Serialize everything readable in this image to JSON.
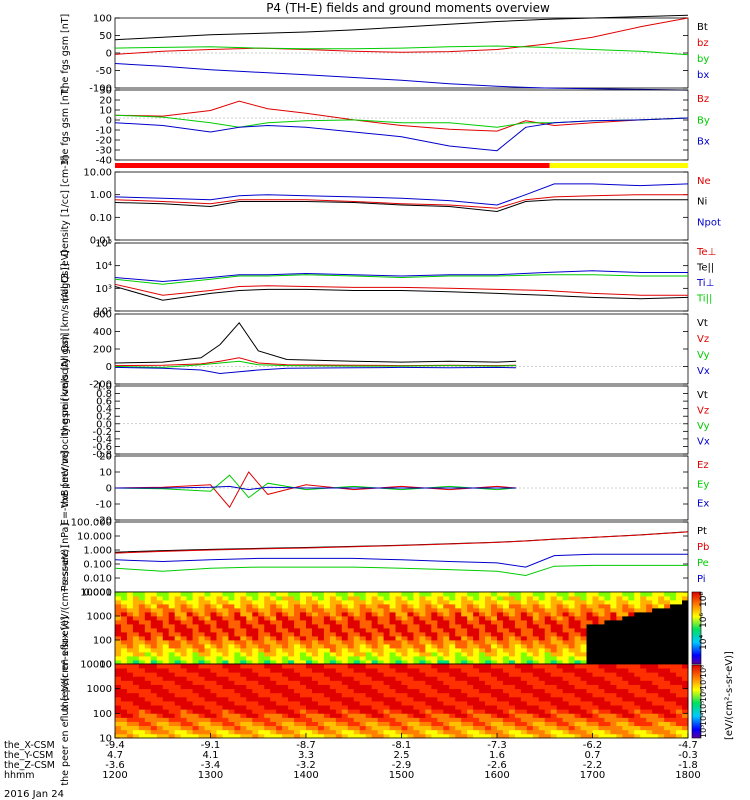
{
  "title": "P4 (TH-E) fields and ground moments overview",
  "date": "2016 Jan 24",
  "orbit_rows": [
    {
      "label": "the_X-CSM",
      "values": [
        "-9.4",
        "-9.1",
        "-8.7",
        "-8.1",
        "-7.3",
        "-6.2",
        "-4.7"
      ]
    },
    {
      "label": "the_Y-CSM",
      "values": [
        "4.7",
        "4.1",
        "3.3",
        "2.5",
        "1.6",
        "0.7",
        "-0.3"
      ]
    },
    {
      "label": "the_Z-CSM",
      "values": [
        "-3.6",
        "-3.4",
        "-3.2",
        "-2.9",
        "-2.6",
        "-2.2",
        "-1.8"
      ]
    },
    {
      "label": "hhmm",
      "values": [
        "1200",
        "1300",
        "1400",
        "1500",
        "1600",
        "1700",
        "1800"
      ]
    }
  ],
  "colorbar": {
    "label": "[eV/(cm²-s-sr-eV)]",
    "ticks_upper": [
      "10⁸",
      "10⁶",
      "10⁴"
    ],
    "ticks_lower": [
      "10⁸",
      "10⁷",
      "10⁶",
      "10⁵",
      "10⁴",
      "10³"
    ]
  },
  "colors": {
    "black": "#000000",
    "red": "#e00000",
    "green": "#00cc00",
    "blue": "#0000cc",
    "yellow": "#ffff00",
    "brightred": "#ff0000"
  },
  "chart_data": [
    {
      "type": "line",
      "ylabel": "the fgs gsm [nT]",
      "ylim": [
        -100,
        100
      ],
      "yticks": [
        "-100",
        "-50",
        "0",
        "50",
        "100"
      ],
      "legend": [
        "Bt",
        "bz",
        "by",
        "bx"
      ],
      "x": [
        12.0,
        12.5,
        13.0,
        13.5,
        14.0,
        14.5,
        15.0,
        15.5,
        16.0,
        16.5,
        17.0,
        17.5,
        18.0
      ],
      "series": [
        {
          "name": "Bt",
          "color": "#000000",
          "values": [
            38,
            45,
            52,
            56,
            60,
            66,
            74,
            82,
            90,
            96,
            100,
            104,
            108
          ]
        },
        {
          "name": "bz",
          "color": "#e00000",
          "values": [
            -4,
            5,
            10,
            14,
            10,
            5,
            2,
            4,
            10,
            25,
            45,
            75,
            100
          ]
        },
        {
          "name": "by",
          "color": "#00cc00",
          "values": [
            14,
            16,
            18,
            14,
            12,
            12,
            14,
            18,
            20,
            16,
            10,
            5,
            -5
          ]
        },
        {
          "name": "bx",
          "color": "#0000cc",
          "values": [
            -30,
            -38,
            -48,
            -55,
            -62,
            -70,
            -78,
            -88,
            -95,
            -100,
            -102,
            -104,
            -106
          ]
        }
      ]
    },
    {
      "type": "line",
      "ylabel": "the fgs gsm [nT]",
      "ylim": [
        -45,
        30
      ],
      "yticks": [
        "-40",
        "-30",
        "-20",
        "-10",
        "0",
        "10",
        "20",
        "30"
      ],
      "legend": [
        "Bz",
        "By",
        "Bx"
      ],
      "x": [
        12.0,
        12.5,
        13.0,
        13.3,
        13.6,
        14.0,
        14.5,
        15.0,
        15.5,
        16.0,
        16.3,
        16.6,
        17.0,
        17.5,
        18.0
      ],
      "series": [
        {
          "name": "Bz",
          "color": "#e00000",
          "values": [
            3,
            2,
            8,
            18,
            10,
            5,
            -2,
            -8,
            -12,
            -14,
            -3,
            -8,
            -5,
            -2,
            0
          ]
        },
        {
          "name": "By",
          "color": "#00cc00",
          "values": [
            3,
            1,
            -5,
            -10,
            -5,
            -3,
            -2,
            -5,
            -5,
            -10,
            -5,
            -5,
            -3,
            -2,
            0
          ]
        },
        {
          "name": "Bx",
          "color": "#0000cc",
          "values": [
            -5,
            -8,
            -15,
            -10,
            -8,
            -10,
            -15,
            -20,
            -30,
            -35,
            -10,
            -5,
            -3,
            -2,
            0
          ]
        }
      ],
      "mode_bar": [
        {
          "from": 12.0,
          "to": 16.55,
          "color": "#ff0000"
        },
        {
          "from": 16.55,
          "to": 18.0,
          "color": "#ffff00"
        }
      ]
    },
    {
      "type": "line",
      "log": true,
      "ylabel": "Density [1/cc] [cm-3]",
      "ylim": [
        0.01,
        10
      ],
      "yticks": [
        "0.01",
        "0.10",
        "1.00",
        "10.00"
      ],
      "legend": [
        "Ne",
        "Ni",
        "Npot"
      ],
      "x": [
        12.0,
        12.5,
        13.0,
        13.3,
        13.6,
        14.0,
        14.5,
        15.0,
        15.5,
        16.0,
        16.3,
        16.6,
        17.0,
        17.5,
        18.0
      ],
      "series": [
        {
          "name": "Ne",
          "color": "#e00000",
          "values": [
            0.6,
            0.5,
            0.4,
            0.6,
            0.6,
            0.6,
            0.5,
            0.4,
            0.35,
            0.25,
            0.6,
            0.8,
            0.9,
            1.0,
            1.0
          ]
        },
        {
          "name": "Ni",
          "color": "#000000",
          "values": [
            0.45,
            0.4,
            0.3,
            0.5,
            0.5,
            0.5,
            0.45,
            0.35,
            0.3,
            0.18,
            0.5,
            0.6,
            0.6,
            0.6,
            0.6
          ]
        },
        {
          "name": "Npot",
          "color": "#0000cc",
          "values": [
            0.8,
            0.7,
            0.6,
            0.9,
            1.0,
            0.9,
            0.8,
            0.7,
            0.55,
            0.35,
            1.0,
            3.0,
            3.0,
            2.5,
            3.0
          ]
        }
      ]
    },
    {
      "type": "line",
      "log": true,
      "ylabel": "magt3 [eV]",
      "ylim": [
        100,
        100000
      ],
      "yticks": [
        "10²",
        "10³",
        "10⁴",
        "10⁵"
      ],
      "legend": [
        "Te⊥",
        "Te||",
        "Ti⊥",
        "Ti||"
      ],
      "x": [
        12.0,
        12.5,
        13.0,
        13.3,
        13.6,
        14.0,
        14.5,
        15.0,
        15.5,
        16.0,
        16.5,
        17.0,
        17.5,
        18.0
      ],
      "series": [
        {
          "name": "Te⊥",
          "color": "#e00000",
          "values": [
            1500,
            500,
            800,
            1200,
            1300,
            1200,
            1100,
            1100,
            1000,
            900,
            800,
            600,
            500,
            500
          ]
        },
        {
          "name": "Te||",
          "color": "#000000",
          "values": [
            1200,
            300,
            600,
            800,
            900,
            900,
            800,
            800,
            700,
            600,
            500,
            400,
            350,
            400
          ]
        },
        {
          "name": "Ti⊥",
          "color": "#0000cc",
          "values": [
            3000,
            2000,
            3000,
            4000,
            4000,
            4500,
            4000,
            3500,
            4000,
            4000,
            5000,
            6000,
            5000,
            5000
          ]
        },
        {
          "name": "Ti||",
          "color": "#00cc00",
          "values": [
            2500,
            1500,
            2500,
            3500,
            3500,
            4000,
            3500,
            3000,
            3500,
            3500,
            4000,
            4000,
            3500,
            3500
          ]
        }
      ]
    },
    {
      "type": "line",
      "ylabel": "the peir velocity gsm [km/s (All Qs)]",
      "ylim": [
        -200,
        600
      ],
      "yticks": [
        "-200",
        "0",
        "200",
        "400",
        "600"
      ],
      "legend": [
        "Vt",
        "Vz",
        "Vy",
        "Vx"
      ],
      "x": [
        12.0,
        12.5,
        12.9,
        13.1,
        13.3,
        13.5,
        13.8,
        14.5,
        15.0,
        15.5,
        16.0,
        16.2
      ],
      "series": [
        {
          "name": "Vt",
          "color": "#000000",
          "values": [
            40,
            50,
            100,
            250,
            500,
            180,
            80,
            60,
            50,
            60,
            50,
            60
          ]
        },
        {
          "name": "Vz",
          "color": "#e00000",
          "values": [
            10,
            15,
            30,
            60,
            100,
            40,
            20,
            15,
            10,
            15,
            10,
            15
          ]
        },
        {
          "name": "Vy",
          "color": "#00cc00",
          "values": [
            0,
            -10,
            20,
            40,
            60,
            20,
            10,
            5,
            5,
            10,
            5,
            10
          ]
        },
        {
          "name": "Vx",
          "color": "#0000cc",
          "values": [
            -10,
            -20,
            -40,
            -80,
            -60,
            -40,
            -20,
            -15,
            -10,
            -15,
            -10,
            -15
          ]
        }
      ]
    },
    {
      "type": "line",
      "ylabel": "the peer velocity gsm [km/s (All Qs)]",
      "ylim": [
        -0.8,
        1.0
      ],
      "yticks": [
        "-0.8",
        "-0.6",
        "-0.4",
        "-0.2",
        "0.0",
        "0.2",
        "0.4",
        "0.6",
        "0.8",
        "1.0"
      ],
      "legend": [
        "Vt",
        "Vz",
        "Vy",
        "Vx"
      ],
      "x": [],
      "series": []
    },
    {
      "type": "line",
      "ylabel": "E=-VxB [mV/m]",
      "ylim": [
        -20,
        20
      ],
      "yticks": [
        "-20",
        "-10",
        "0",
        "10",
        "20"
      ],
      "legend": [
        "Ez",
        "Ey",
        "Ex"
      ],
      "x": [
        12.0,
        12.5,
        13.0,
        13.2,
        13.4,
        13.6,
        14.0,
        14.5,
        15.0,
        15.5,
        16.0,
        16.2
      ],
      "series": [
        {
          "name": "Ez",
          "color": "#e00000",
          "values": [
            0,
            0.5,
            2,
            -12,
            10,
            -4,
            2,
            -1,
            1,
            -1,
            1,
            0
          ]
        },
        {
          "name": "Ey",
          "color": "#00cc00",
          "values": [
            0,
            -0.5,
            -2,
            8,
            -6,
            3,
            -1,
            1,
            -1,
            1,
            -1,
            0
          ]
        },
        {
          "name": "Ex",
          "color": "#0000cc",
          "values": [
            0,
            0,
            0.5,
            1,
            -1,
            0.5,
            0,
            0,
            0,
            0,
            0,
            0
          ]
        }
      ]
    },
    {
      "type": "line",
      "log": true,
      "ylabel": "Pressure [nPa]",
      "ylim": [
        0.001,
        100
      ],
      "yticks": [
        "0.001",
        "0.010",
        "0.100",
        "1.000",
        "10.000",
        "100.000"
      ],
      "legend": [
        "Pt",
        "Pb",
        "Pe",
        "Pi"
      ],
      "x": [
        12.0,
        12.5,
        13.0,
        13.5,
        14.0,
        14.5,
        15.0,
        15.5,
        16.0,
        16.3,
        16.6,
        17.0,
        17.5,
        18.0
      ],
      "series": [
        {
          "name": "Pt",
          "color": "#000000",
          "values": [
            0.7,
            0.9,
            1.1,
            1.3,
            1.5,
            1.8,
            2.2,
            2.8,
            3.6,
            4.5,
            6,
            8,
            12,
            20
          ]
        },
        {
          "name": "Pb",
          "color": "#e00000",
          "values": [
            0.6,
            0.8,
            1.0,
            1.2,
            1.4,
            1.7,
            2.1,
            2.7,
            3.5,
            4.4,
            5.9,
            7.9,
            11.8,
            19.5
          ]
        },
        {
          "name": "Pe",
          "color": "#00cc00",
          "values": [
            0.05,
            0.03,
            0.05,
            0.06,
            0.06,
            0.06,
            0.05,
            0.04,
            0.03,
            0.015,
            0.07,
            0.08,
            0.08,
            0.08
          ]
        },
        {
          "name": "Pi",
          "color": "#0000cc",
          "values": [
            0.2,
            0.15,
            0.2,
            0.25,
            0.25,
            0.25,
            0.2,
            0.15,
            0.12,
            0.06,
            0.4,
            0.5,
            0.5,
            0.5
          ]
        }
      ]
    },
    {
      "type": "heatmap",
      "log": true,
      "ylabel": "the peir en eflux [eV/(cm²-s-sr-eV)]",
      "ylim": [
        5,
        30000
      ],
      "yticks": [
        "10",
        "100",
        "1000",
        "10000"
      ]
    },
    {
      "type": "heatmap",
      "log": true,
      "ylabel": "the peer en eflux [eV/(cm²-s-sr-eV)]",
      "ylim": [
        5,
        30000
      ],
      "yticks": [
        "10",
        "100",
        "1000",
        "10000"
      ]
    }
  ]
}
